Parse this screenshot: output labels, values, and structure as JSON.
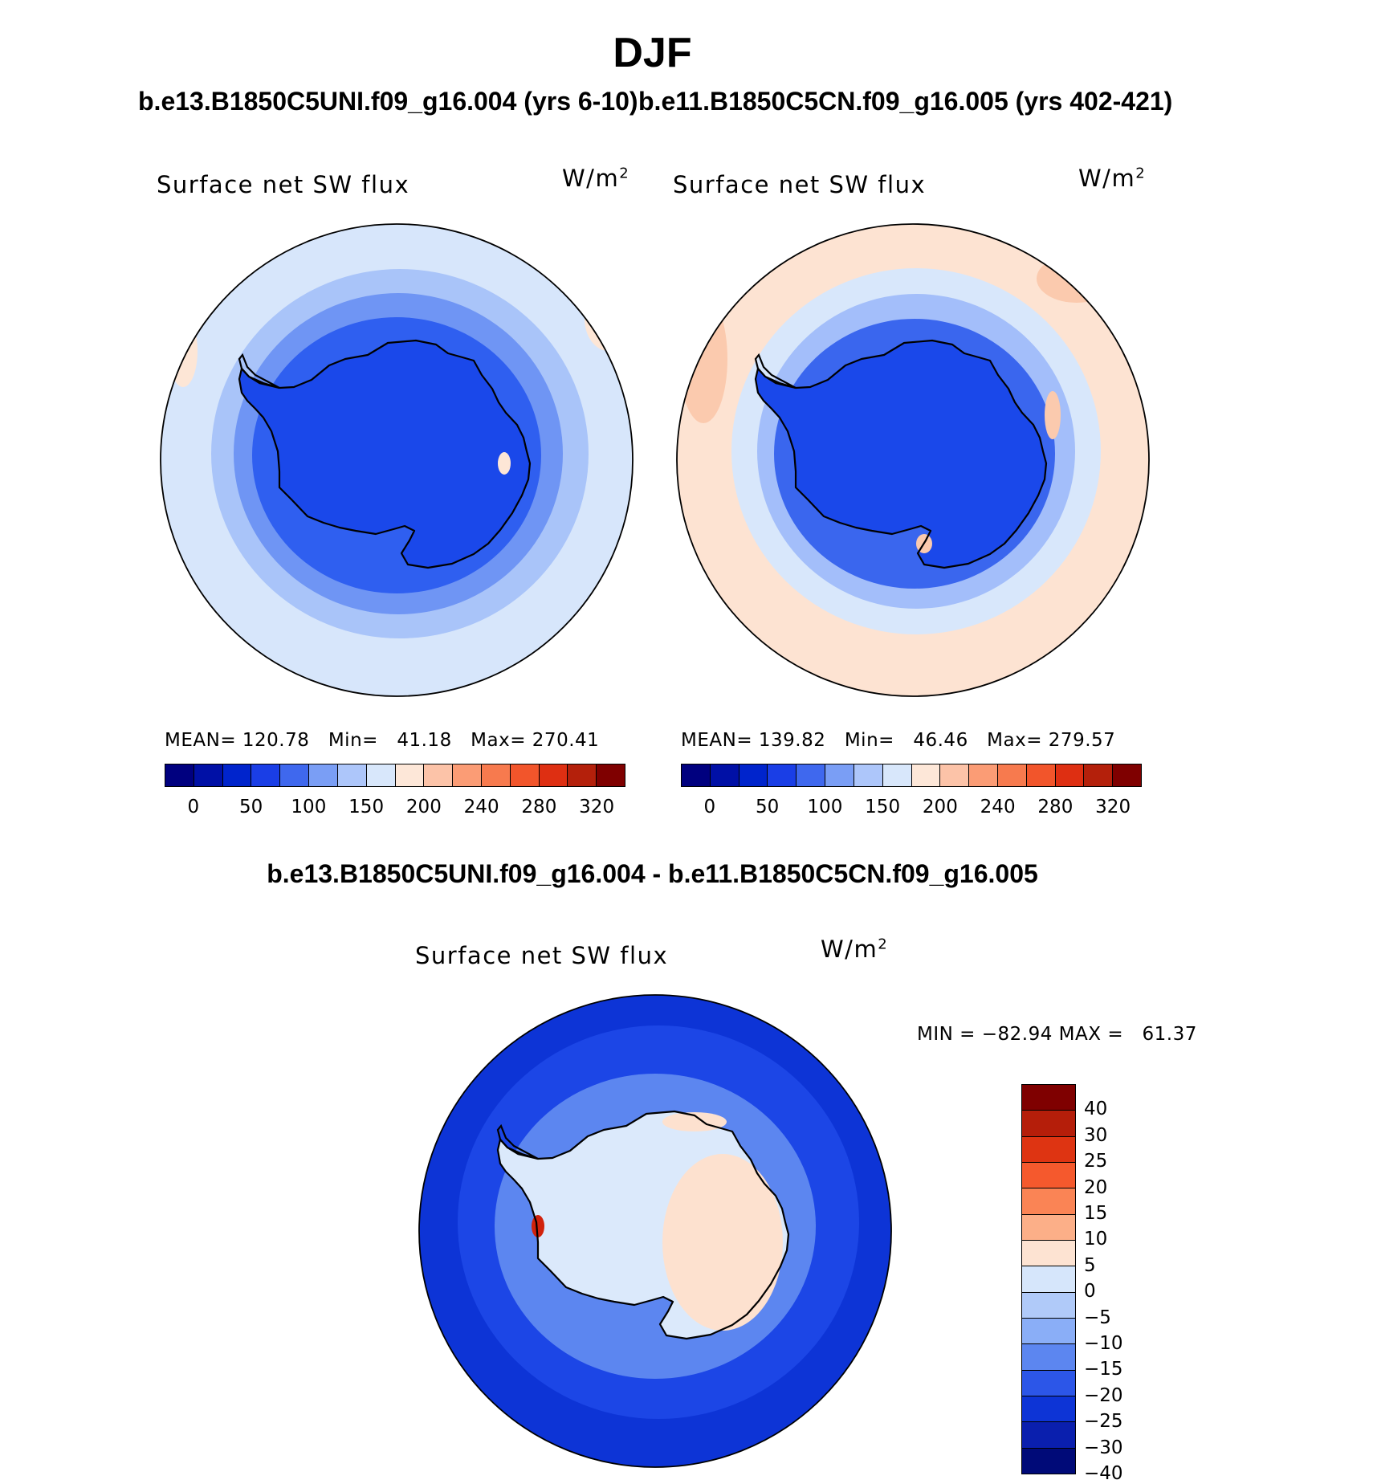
{
  "main_title": "DJF",
  "chart_data": [
    {
      "type": "heatmap",
      "projection": "south-polar-stereographic",
      "case_title": "b.e13.B1850C5UNI.f09_g16.004 (yrs 6-10)",
      "variable": "Surface net SW flux",
      "units": "W/m",
      "units_superscript": "2",
      "stats": {
        "mean_label": "MEAN=",
        "mean": "120.78",
        "min_label": "Min=",
        "min": "41.18",
        "max_label": "Max=",
        "max": "270.41"
      },
      "colorbar": {
        "orientation": "horizontal",
        "levels": [
          0,
          25,
          50,
          75,
          100,
          125,
          150,
          175,
          200,
          220,
          240,
          260,
          280,
          300,
          320
        ],
        "tick_labels": [
          "0",
          "50",
          "100",
          "150",
          "200",
          "240",
          "280",
          "320"
        ],
        "colors": [
          "#00007f",
          "#0010a6",
          "#0024cc",
          "#1a3ee6",
          "#3f68ee",
          "#7a9ef5",
          "#adc6fa",
          "#d8e7fb",
          "#fde7d8",
          "#fcc3a8",
          "#fb9c75",
          "#f77a4e",
          "#f2552b",
          "#de2f12",
          "#b4200b",
          "#7f0000"
        ]
      },
      "regions": {
        "antarctica": "#1a48ea",
        "inner_ocean": "#2f5ff0",
        "mid_ocean": "#6f95f4",
        "outer_ring": "#a9c4f9",
        "far_ocean": "#d7e6fb",
        "warm_edge": "#fde6d6"
      }
    },
    {
      "type": "heatmap",
      "projection": "south-polar-stereographic",
      "case_title": "b.e11.B1850C5CN.f09_g16.005 (yrs 402-421)",
      "variable": "Surface net SW flux",
      "units": "W/m",
      "units_superscript": "2",
      "stats": {
        "mean_label": "MEAN=",
        "mean": "139.82",
        "min_label": "Min=",
        "min": "46.46",
        "max_label": "Max=",
        "max": "279.57"
      },
      "colorbar": {
        "orientation": "horizontal",
        "levels": [
          0,
          25,
          50,
          75,
          100,
          125,
          150,
          175,
          200,
          220,
          240,
          260,
          280,
          300,
          320
        ],
        "tick_labels": [
          "0",
          "50",
          "100",
          "150",
          "200",
          "240",
          "280",
          "320"
        ],
        "colors": [
          "#00007f",
          "#0010a6",
          "#0024cc",
          "#1a3ee6",
          "#3f68ee",
          "#7a9ef5",
          "#adc6fa",
          "#d8e7fb",
          "#fde7d8",
          "#fcc3a8",
          "#fb9c75",
          "#f77a4e",
          "#f2552b",
          "#de2f12",
          "#b4200b",
          "#7f0000"
        ]
      },
      "regions": {
        "antarctica": "#1a48ea",
        "inner_ocean": "#3a66ee",
        "mid_ocean": "#a3befa",
        "outer_ring": "#d8e7fb",
        "far_ocean": "#fde3d2",
        "warm_edge": "#fbcaae"
      }
    },
    {
      "type": "heatmap",
      "projection": "south-polar-stereographic",
      "case_title": "b.e13.B1850C5UNI.f09_g16.004 - b.e11.B1850C5CN.f09_g16.005",
      "variable": "Surface net SW flux",
      "units": "W/m",
      "units_superscript": "2",
      "stats": {
        "min_label": "MIN =",
        "min": "−82.94",
        "max_label": "MAX =",
        "max": "61.37"
      },
      "colorbar": {
        "orientation": "vertical",
        "tick_labels_top_to_bottom": [
          "40",
          "30",
          "25",
          "20",
          "15",
          "10",
          "5",
          "0",
          "−5",
          "−10",
          "−15",
          "−20",
          "−25",
          "−30",
          "−40"
        ],
        "colors_top_to_bottom": [
          "#7f0000",
          "#b51e0a",
          "#de3412",
          "#f5592d",
          "#fa8455",
          "#fcaf88",
          "#fde3d2",
          "#d6e6fb",
          "#b0caf9",
          "#8aaef7",
          "#5c86f0",
          "#2c56e8",
          "#0d34d6",
          "#0a1fae",
          "#000a78"
        ]
      },
      "regions": {
        "ocean_far": "#0d34d6",
        "ocean_ring": "#1c46e6",
        "ocean_near": "#5c86f0",
        "antarctica": "#dbe9fb",
        "warm_patch": "#fde1cf",
        "hotspot": "#d1220c"
      }
    }
  ]
}
